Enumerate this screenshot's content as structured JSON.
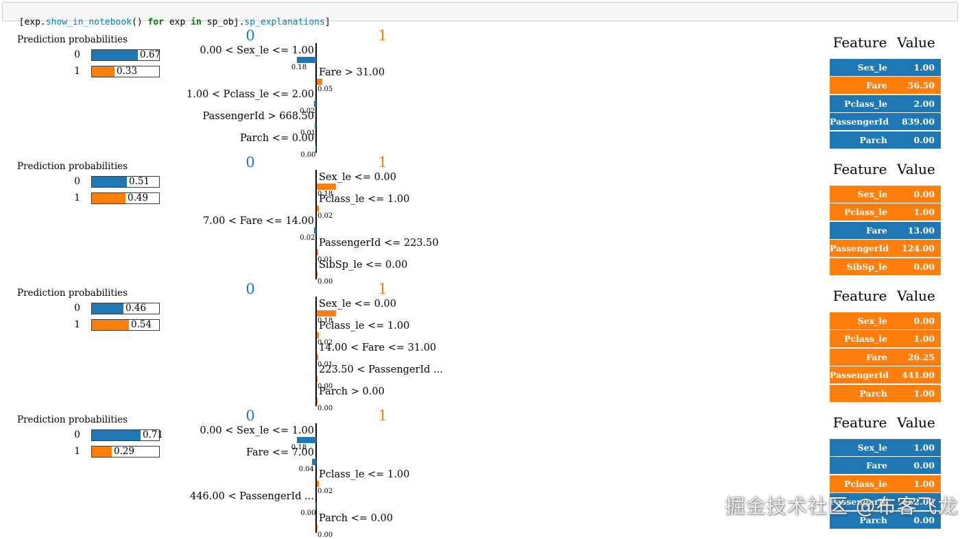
{
  "code_cell": {
    "tokens": [
      {
        "text": "[exp.",
        "type": "plain"
      },
      {
        "text": "show_in_notebook",
        "type": "method"
      },
      {
        "text": "() ",
        "type": "plain"
      },
      {
        "text": "for",
        "type": "keyword"
      },
      {
        "text": " exp ",
        "type": "plain"
      },
      {
        "text": "in",
        "type": "keyword"
      },
      {
        "text": " sp_obj.",
        "type": "plain"
      },
      {
        "text": "sp_explanations",
        "type": "method"
      },
      {
        "text": "]",
        "type": "plain"
      }
    ]
  },
  "colors": {
    "class0": "#1f77b4",
    "class1": "#ff7f0e"
  },
  "watermark": "掘金技术社区 @布客飞龙",
  "explanations": [
    {
      "prediction": {
        "title": "Prediction probabilities",
        "bars": [
          {
            "label": "0",
            "value": 0.67,
            "text": "0.67",
            "class": 0
          },
          {
            "label": "1",
            "value": 0.33,
            "text": "0.33",
            "class": 1
          }
        ]
      },
      "chart": {
        "left_header": "0",
        "right_header": "1",
        "items": [
          {
            "label": "0.00 < Sex_le <= 1.00",
            "value": 0.18,
            "text": "0.18",
            "side": "left"
          },
          {
            "label": "Fare > 31.00",
            "value": 0.05,
            "text": "0.05",
            "side": "right"
          },
          {
            "label": "1.00 < Pclass_le <= 2.00",
            "value": 0.02,
            "text": "0.02",
            "side": "left"
          },
          {
            "label": "PassengerId > 668.50",
            "value": 0.01,
            "text": "0.01",
            "side": "left"
          },
          {
            "label": "Parch <= 0.00",
            "value": 0.0,
            "text": "0.00",
            "side": "left"
          }
        ]
      },
      "table": {
        "feature_header": "Feature",
        "value_header": "Value",
        "rows": [
          {
            "feature": "Sex_le",
            "value": "1.00",
            "class": 0
          },
          {
            "feature": "Fare",
            "value": "56.50",
            "class": 1
          },
          {
            "feature": "Pclass_le",
            "value": "2.00",
            "class": 0
          },
          {
            "feature": "PassengerId",
            "value": "839.00",
            "class": 0
          },
          {
            "feature": "Parch",
            "value": "0.00",
            "class": 0
          }
        ]
      }
    },
    {
      "prediction": {
        "title": "Prediction probabilities",
        "bars": [
          {
            "label": "0",
            "value": 0.51,
            "text": "0.51",
            "class": 0
          },
          {
            "label": "1",
            "value": 0.49,
            "text": "0.49",
            "class": 1
          }
        ]
      },
      "chart": {
        "left_header": "0",
        "right_header": "1",
        "items": [
          {
            "label": "Sex_le <= 0.00",
            "value": 0.18,
            "text": "0.18",
            "side": "right"
          },
          {
            "label": "Pclass_le <= 1.00",
            "value": 0.02,
            "text": "0.02",
            "side": "right"
          },
          {
            "label": "7.00 < Fare <= 14.00",
            "value": 0.02,
            "text": "0.02",
            "side": "left"
          },
          {
            "label": "PassengerId <= 223.50",
            "value": 0.01,
            "text": "0.01",
            "side": "right"
          },
          {
            "label": "SibSp_le <= 0.00",
            "value": 0.0,
            "text": "0.00",
            "side": "right"
          }
        ]
      },
      "table": {
        "feature_header": "Feature",
        "value_header": "Value",
        "rows": [
          {
            "feature": "Sex_le",
            "value": "0.00",
            "class": 1
          },
          {
            "feature": "Pclass_le",
            "value": "1.00",
            "class": 1
          },
          {
            "feature": "Fare",
            "value": "13.00",
            "class": 0
          },
          {
            "feature": "PassengerId",
            "value": "124.00",
            "class": 1
          },
          {
            "feature": "SibSp_le",
            "value": "0.00",
            "class": 1
          }
        ]
      }
    },
    {
      "prediction": {
        "title": "Prediction probabilities",
        "bars": [
          {
            "label": "0",
            "value": 0.46,
            "text": "0.46",
            "class": 0
          },
          {
            "label": "1",
            "value": 0.54,
            "text": "0.54",
            "class": 1
          }
        ]
      },
      "chart": {
        "left_header": "0",
        "right_header": "1",
        "items": [
          {
            "label": "Sex_le <= 0.00",
            "value": 0.18,
            "text": "0.18",
            "side": "right"
          },
          {
            "label": "Pclass_le <= 1.00",
            "value": 0.02,
            "text": "0.02",
            "side": "right"
          },
          {
            "label": "14.00 < Fare <= 31.00",
            "value": 0.01,
            "text": "0.01",
            "side": "right"
          },
          {
            "label": "223.50 < PassengerId ...",
            "value": 0.0,
            "text": "0.00",
            "side": "right"
          },
          {
            "label": "Parch > 0.00",
            "value": 0.0,
            "text": "0.00",
            "side": "right"
          }
        ]
      },
      "table": {
        "feature_header": "Feature",
        "value_header": "Value",
        "rows": [
          {
            "feature": "Sex_le",
            "value": "0.00",
            "class": 1
          },
          {
            "feature": "Pclass_le",
            "value": "1.00",
            "class": 1
          },
          {
            "feature": "Fare",
            "value": "26.25",
            "class": 1
          },
          {
            "feature": "PassengerId",
            "value": "441.00",
            "class": 1
          },
          {
            "feature": "Parch",
            "value": "1.00",
            "class": 1
          }
        ]
      }
    },
    {
      "prediction": {
        "title": "Prediction probabilities",
        "bars": [
          {
            "label": "0",
            "value": 0.71,
            "text": "0.71",
            "class": 0
          },
          {
            "label": "1",
            "value": 0.29,
            "text": "0.29",
            "class": 1
          }
        ]
      },
      "chart": {
        "left_header": "0",
        "right_header": "1",
        "items": [
          {
            "label": "0.00 < Sex_le <= 1.00",
            "value": 0.18,
            "text": "0.18",
            "side": "left"
          },
          {
            "label": "Fare <= 7.00",
            "value": 0.04,
            "text": "0.04",
            "side": "left"
          },
          {
            "label": "Pclass_le <= 1.00",
            "value": 0.02,
            "text": "0.02",
            "side": "right"
          },
          {
            "label": "446.00 < PassengerId ...",
            "value": 0.0,
            "text": "0.00",
            "side": "left"
          },
          {
            "label": "Parch <= 0.00",
            "value": 0.0,
            "text": "0.00",
            "side": "right"
          }
        ]
      },
      "table": {
        "feature_header": "Feature",
        "value_header": "Value",
        "rows": [
          {
            "feature": "Sex_le",
            "value": "1.00",
            "class": 0
          },
          {
            "feature": "Fare",
            "value": "0.00",
            "class": 0
          },
          {
            "feature": "Pclass_le",
            "value": "1.00",
            "class": 1
          },
          {
            "feature": "PassengerId",
            "value": "452.00",
            "class": 0
          },
          {
            "feature": "Parch",
            "value": "0.00",
            "class": 0
          }
        ]
      }
    }
  ]
}
